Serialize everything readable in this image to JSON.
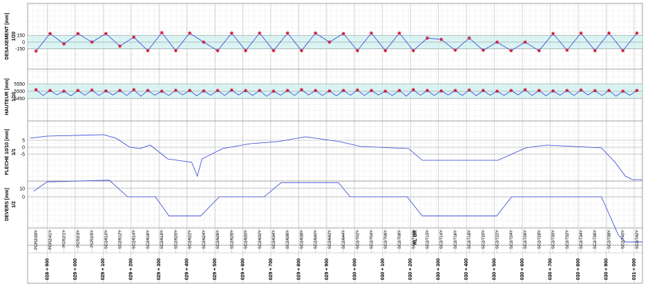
{
  "chart_data": [
    {
      "type": "line",
      "title": "DESAXEMENT [mm]",
      "scale": "1/20",
      "xlim": [
        28830,
        31030
      ],
      "ylim": [
        -600,
        860
      ],
      "yticks": [
        150,
        0,
        -150
      ],
      "band": true,
      "series": [
        {
          "color": "#2b3fd6",
          "markers": true,
          "marker_color": "#d01030",
          "marker_every": 1,
          "x": [
            28860,
            28910,
            28960,
            29010,
            29060,
            29110,
            29160,
            29210,
            29260,
            29310,
            29360,
            29410,
            29460,
            29510,
            29560,
            29610,
            29660,
            29710,
            29760,
            29810,
            29860,
            29910,
            29960,
            30010,
            30060,
            30110,
            30160,
            30210,
            30260,
            30310,
            30360,
            30410,
            30460,
            30510,
            30560,
            30610,
            30660,
            30710,
            30760,
            30810,
            30860,
            30910,
            30960,
            31010
          ],
          "values": [
            -200,
            190,
            -40,
            190,
            0,
            190,
            -90,
            110,
            -190,
            210,
            -190,
            200,
            0,
            -190,
            200,
            -190,
            200,
            -190,
            200,
            -190,
            200,
            0,
            190,
            -190,
            200,
            -190,
            200,
            -190,
            90,
            60,
            -180,
            90,
            -180,
            0,
            -190,
            0,
            -190,
            190,
            -180,
            200,
            -190,
            200,
            -190,
            200
          ]
        }
      ]
    },
    {
      "type": "line",
      "title": "HAUTEUR [mm]",
      "scale": "1/10",
      "xlim": [
        28830,
        31030
      ],
      "ylim": [
        5295,
        5629
      ],
      "yticks": [
        5550,
        5500,
        5450
      ],
      "band": true,
      "series": [
        {
          "color": "#2b3fd6",
          "markers": true,
          "marker_color": "#d01030",
          "marker_every": 2,
          "x": [
            28860,
            28885,
            28910,
            28935,
            28960,
            28985,
            29010,
            29035,
            29060,
            29085,
            29110,
            29135,
            29160,
            29185,
            29210,
            29235,
            29260,
            29285,
            29310,
            29335,
            29360,
            29385,
            29410,
            29435,
            29460,
            29485,
            29510,
            29535,
            29560,
            29585,
            29610,
            29635,
            29660,
            29685,
            29710,
            29735,
            29760,
            29785,
            29810,
            29835,
            29860,
            29885,
            29910,
            29935,
            29960,
            29985,
            30010,
            30035,
            30060,
            30085,
            30110,
            30135,
            30160,
            30185,
            30210,
            30235,
            30260,
            30285,
            30310,
            30335,
            30360,
            30385,
            30410,
            30435,
            30460,
            30485,
            30510,
            30535,
            30560,
            30585,
            30610,
            30635,
            30660,
            30685,
            30710,
            30735,
            30760,
            30785,
            30810,
            30835,
            30860,
            30885,
            30910,
            30935,
            30960,
            30985,
            31010
          ],
          "values": [
            5510,
            5470,
            5505,
            5475,
            5500,
            5468,
            5505,
            5472,
            5508,
            5470,
            5502,
            5474,
            5505,
            5470,
            5510,
            5465,
            5505,
            5472,
            5500,
            5470,
            5506,
            5475,
            5505,
            5468,
            5502,
            5472,
            5505,
            5470,
            5508,
            5474,
            5504,
            5470,
            5505,
            5465,
            5500,
            5472,
            5505,
            5470,
            5510,
            5474,
            5505,
            5470,
            5502,
            5468,
            5505,
            5472,
            5508,
            5470,
            5505,
            5474,
            5500,
            5470,
            5505,
            5466,
            5510,
            5472,
            5505,
            5470,
            5502,
            5474,
            5505,
            5470,
            5508,
            5468,
            5505,
            5472,
            5500,
            5470,
            5505,
            5474,
            5510,
            5470,
            5505,
            5468,
            5502,
            5472,
            5505,
            5470,
            5508,
            5474,
            5504,
            5470,
            5505,
            5466,
            5500,
            5472,
            5505
          ]
        }
      ]
    },
    {
      "type": "line",
      "title": "FLECHE 10/10 [mm]",
      "scale": "1/1",
      "xlim": [
        28830,
        31030
      ],
      "ylim": [
        -24.5,
        17.5
      ],
      "yticks": [
        5,
        0,
        -5
      ],
      "band": false,
      "series": [
        {
          "color": "#2b3fd6",
          "markers": false,
          "x": [
            28838,
            28900,
            29102,
            29146,
            29195,
            29232,
            29269,
            29331,
            29417,
            29437,
            29454,
            29528,
            29627,
            29725,
            29824,
            29947,
            30021,
            30193,
            30242,
            30513,
            30612,
            30686,
            30883,
            30932,
            30969,
            30994,
            31030
          ],
          "values": [
            6.5,
            8,
            9,
            6.5,
            0,
            -1,
            1.5,
            -8.5,
            -11,
            -21,
            -8.5,
            -1,
            2.5,
            4,
            7.5,
            4,
            0.5,
            -1,
            -9.5,
            -9.5,
            -0.5,
            1.5,
            -0.5,
            -11,
            -21,
            -23.5,
            -23.5
          ]
        }
      ]
    },
    {
      "type": "line",
      "title": "DEVERS [mm]",
      "scale": "1/2",
      "xlim": [
        28830,
        31030
      ],
      "ylim": [
        -58,
        19
      ],
      "yticks": [
        10,
        0
      ],
      "band": false,
      "series": [
        {
          "color": "#2b3fd6",
          "markers": false,
          "x": [
            28851,
            28900,
            29122,
            29188,
            29287,
            29336,
            29449,
            29516,
            29676,
            29737,
            29942,
            29984,
            30188,
            30242,
            30508,
            30562,
            30883,
            30944,
            30969,
            31030
          ],
          "values": [
            6.7,
            18,
            20,
            0,
            0,
            -23,
            -23,
            0,
            0,
            17,
            17,
            0,
            0,
            -23,
            -23,
            0,
            0,
            -46,
            -54,
            -54
          ]
        }
      ]
    }
  ],
  "supports": {
    "labels": [
      "PCR2/39Y",
      "PCR2/41Y",
      "PCR2/1Y",
      "PCR2/3Y",
      "PCR2/5Y",
      "SC2/610Y",
      "SC2/612Y",
      "SC2/614Y",
      "SC2/616Y",
      "SC2/618Y",
      "SC2/620Y",
      "SC2/622Y",
      "SC2/624Y",
      "SC2/626Y",
      "SC2/628Y",
      "SC2/630Y",
      "SC2/632Y",
      "SC2/634Y",
      "SC2/636Y",
      "SC2/638Y",
      "SC2/640Y",
      "SC2/642Y",
      "SC2/644Y",
      "SC2/702Y",
      "SC2/704Y",
      "SC2/706Y",
      "SC2/708Y",
      "SC2/710Y",
      "SC2/713Y",
      "SC2/714Y",
      "SC2/716Y",
      "SC2/718Y",
      "SC2/720Y",
      "SC2/722Y",
      "SC2/724Y",
      "SC2/726Y",
      "SC2/728Y",
      "SC2/730Y",
      "SC2/732Y",
      "SC2/734Y",
      "SC2/736Y",
      "SC2/738Y",
      "SC2/740Y",
      "SC2/742Y"
    ],
    "x": [
      28860,
      28910,
      28960,
      29010,
      29060,
      29110,
      29160,
      29210,
      29260,
      29310,
      29360,
      29410,
      29460,
      29510,
      29560,
      29610,
      29660,
      29710,
      29760,
      29810,
      29860,
      29910,
      29960,
      30010,
      30060,
      30110,
      30160,
      30210,
      30260,
      30310,
      30360,
      30410,
      30460,
      30510,
      30560,
      30610,
      30660,
      30710,
      30760,
      30810,
      30860,
      30910,
      30960,
      31010
    ]
  },
  "chainage": {
    "ticks": [
      {
        "value": 28900,
        "label": "028 + 900"
      },
      {
        "value": 29000,
        "label": "029 + 000"
      },
      {
        "value": 29100,
        "label": "029 + 100"
      },
      {
        "value": 29200,
        "label": "029 + 200"
      },
      {
        "value": 29300,
        "label": "029 + 300"
      },
      {
        "value": 29400,
        "label": "029 + 400"
      },
      {
        "value": 29500,
        "label": "029 + 500"
      },
      {
        "value": 29600,
        "label": "029 + 600"
      },
      {
        "value": 29700,
        "label": "029 + 700"
      },
      {
        "value": 29800,
        "label": "029 + 800"
      },
      {
        "value": 29900,
        "label": "029 + 900"
      },
      {
        "value": 30000,
        "label": "030 + 000"
      },
      {
        "value": 30100,
        "label": "030 + 100"
      },
      {
        "value": 30200,
        "label": "030 + 200"
      },
      {
        "value": 30300,
        "label": "030 + 300"
      },
      {
        "value": 30400,
        "label": "030 + 400"
      },
      {
        "value": 30500,
        "label": "030 + 500"
      },
      {
        "value": 30600,
        "label": "030 + 600"
      },
      {
        "value": 30700,
        "label": "030 + 700"
      },
      {
        "value": 30800,
        "label": "030 + 800"
      },
      {
        "value": 30900,
        "label": "030 + 900"
      },
      {
        "value": 31000,
        "label": "031 + 000"
      }
    ]
  },
  "annotations": [
    {
      "text": "RL BR",
      "x": 30200
    }
  ]
}
